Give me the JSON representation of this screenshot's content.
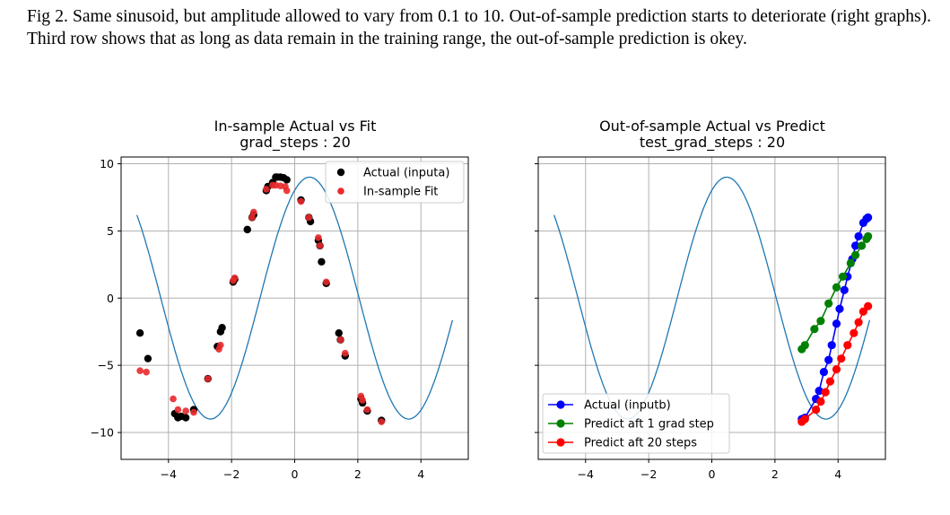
{
  "caption": "Fig 2. Same sinusoid, but amplitude allowed to vary from 0.1 to 10. Out-of-sample prediction starts to deteriorate (right graphs). Third row shows that as long as data remain in the training range, the out-of-sample prediction is okey.",
  "colors": {
    "curve": "#1f77b4",
    "actual_a": "#000000",
    "fit": "#e8292b",
    "actual_b": "#0000ff",
    "pred1": "#008000",
    "pred20": "#ff0000",
    "grid": "#b0b0b0"
  },
  "chart_data": [
    {
      "type": "scatter",
      "title": "In-sample Actual vs Fit",
      "subtitle": "grad_steps : 20",
      "xlim": [
        -5.5,
        5.5
      ],
      "ylim": [
        -12,
        10.5
      ],
      "xticks": [
        -4,
        -2,
        0,
        2,
        4
      ],
      "yticks": [
        10,
        5,
        0,
        -5,
        -10
      ],
      "xtick_labels": [
        "−4",
        "−2",
        "0",
        "2",
        "4"
      ],
      "ytick_labels": [
        "10",
        "5",
        "0",
        "−5",
        "−10"
      ],
      "grid": true,
      "legend_position": "top-right",
      "line": {
        "amplitude": 9.0,
        "phase": 1.1,
        "x_range": [
          -5,
          5
        ]
      },
      "series": [
        {
          "name": "Actual (inputa)",
          "kind": "scatter",
          "x": [
            -4.9,
            -4.65,
            -3.8,
            -3.7,
            -3.6,
            -3.45,
            -3.2,
            -2.75,
            -2.45,
            -2.35,
            -2.3,
            -1.95,
            -1.9,
            -1.5,
            -1.35,
            -1.3,
            -0.9,
            -0.85,
            -0.7,
            -0.6,
            -0.55,
            -0.45,
            -0.35,
            -0.25,
            0.2,
            0.45,
            0.5,
            0.75,
            0.8,
            0.85,
            1.0,
            1.4,
            1.45,
            1.6,
            2.1,
            2.15,
            2.3,
            2.75
          ],
          "y": [
            -2.6,
            -4.5,
            -8.6,
            -8.9,
            -8.8,
            -8.9,
            -8.3,
            -6.0,
            -3.6,
            -2.5,
            -2.2,
            1.2,
            1.4,
            5.1,
            6.0,
            6.2,
            8.0,
            8.3,
            8.6,
            9.0,
            9.0,
            9.0,
            8.95,
            8.8,
            7.3,
            6.0,
            5.7,
            4.3,
            3.9,
            2.7,
            1.1,
            -2.6,
            -3.1,
            -4.3,
            -7.5,
            -7.8,
            -8.4,
            -9.1
          ]
        },
        {
          "name": "In-sample Fit",
          "kind": "scatter",
          "x": [
            -4.9,
            -4.7,
            -3.85,
            -3.7,
            -3.45,
            -3.2,
            -2.75,
            -2.4,
            -2.35,
            -1.95,
            -1.9,
            -1.35,
            -1.3,
            -0.9,
            -0.7,
            -0.6,
            -0.45,
            -0.3,
            -0.25,
            0.2,
            0.45,
            0.75,
            0.8,
            1.0,
            1.45,
            1.6,
            2.1,
            2.15,
            2.3,
            2.75
          ],
          "y": [
            -5.4,
            -5.5,
            -7.5,
            -8.3,
            -8.4,
            -8.5,
            -6.0,
            -3.8,
            -3.5,
            1.3,
            1.5,
            6.0,
            6.4,
            8.1,
            8.4,
            8.4,
            8.35,
            8.3,
            8.0,
            7.2,
            6.0,
            4.5,
            3.9,
            1.2,
            -3.1,
            -4.1,
            -7.3,
            -7.6,
            -8.3,
            -9.2
          ]
        }
      ]
    },
    {
      "type": "line",
      "title": "Out-of-sample Actual vs Predict",
      "subtitle": "test_grad_steps : 20",
      "xlim": [
        -5.5,
        5.5
      ],
      "ylim": [
        -12,
        10.5
      ],
      "xticks": [
        -4,
        -2,
        0,
        2,
        4
      ],
      "yticks": [
        10,
        5,
        0,
        -5,
        -10
      ],
      "xtick_labels": [
        "−4",
        "−2",
        "0",
        "2",
        "4"
      ],
      "grid": true,
      "legend_position": "bottom-left",
      "line": {
        "amplitude": 9.0,
        "phase": 1.1,
        "x_range": [
          -5,
          5
        ]
      },
      "series": [
        {
          "name": "Actual (inputb)",
          "kind": "line-marker",
          "x": [
            2.85,
            2.95,
            3.3,
            3.4,
            3.55,
            3.7,
            3.8,
            3.95,
            4.05,
            4.2,
            4.3,
            4.45,
            4.55,
            4.65,
            4.8,
            4.9,
            4.95
          ],
          "y": [
            -9.0,
            -8.9,
            -7.5,
            -6.9,
            -5.5,
            -4.6,
            -3.5,
            -1.9,
            -0.8,
            0.6,
            1.6,
            2.9,
            3.9,
            4.6,
            5.6,
            5.9,
            6.0
          ]
        },
        {
          "name": "Predict aft 1 grad step",
          "kind": "line-marker",
          "x": [
            2.85,
            2.95,
            3.25,
            3.45,
            3.7,
            3.95,
            4.15,
            4.4,
            4.55,
            4.75,
            4.9,
            4.95
          ],
          "y": [
            -3.8,
            -3.5,
            -2.3,
            -1.7,
            -0.4,
            0.8,
            1.6,
            2.6,
            3.2,
            3.9,
            4.4,
            4.6
          ]
        },
        {
          "name": "Predict aft 20 steps",
          "kind": "line-marker",
          "x": [
            2.85,
            2.95,
            3.3,
            3.45,
            3.6,
            3.75,
            3.95,
            4.1,
            4.3,
            4.5,
            4.65,
            4.8,
            4.95
          ],
          "y": [
            -9.2,
            -9.0,
            -8.3,
            -7.7,
            -7.0,
            -6.2,
            -5.3,
            -4.5,
            -3.5,
            -2.6,
            -1.8,
            -1.0,
            -0.6
          ]
        }
      ]
    }
  ]
}
